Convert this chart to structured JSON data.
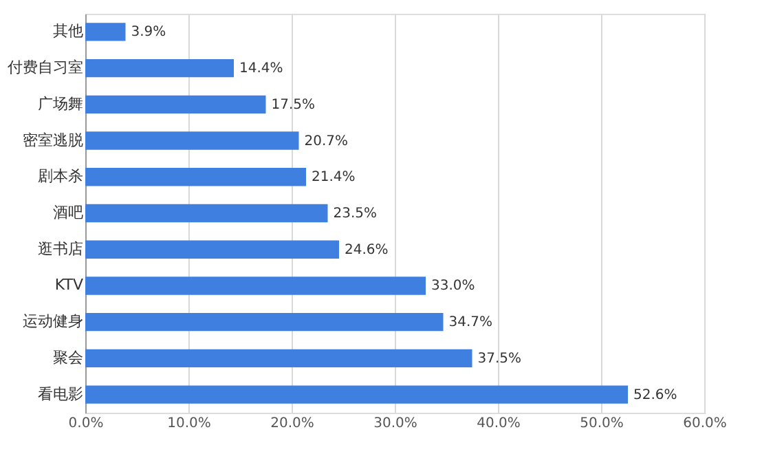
{
  "chart_data": {
    "type": "bar",
    "orientation": "horizontal",
    "categories": [
      "其他",
      "付费自习室",
      "广场舞",
      "密室逃脱",
      "剧本杀",
      "酒吧",
      "逛书店",
      "KTV",
      "运动健身",
      "聚会",
      "看电影"
    ],
    "values": [
      3.9,
      14.4,
      17.5,
      20.7,
      21.4,
      23.5,
      24.6,
      33.0,
      34.7,
      37.5,
      52.6
    ],
    "value_labels": [
      "3.9%",
      "14.4%",
      "17.5%",
      "20.7%",
      "21.4%",
      "23.5%",
      "24.6%",
      "33.0%",
      "34.7%",
      "37.5%",
      "52.6%"
    ],
    "color": "#3f7fe0",
    "xlim": [
      0,
      60
    ],
    "xticks": [
      {
        "value": 0,
        "label": "0.0%"
      },
      {
        "value": 10,
        "label": "10.0%"
      },
      {
        "value": 20,
        "label": "20.0%"
      },
      {
        "value": 30,
        "label": "30.0%"
      },
      {
        "value": 40,
        "label": "40.0%"
      },
      {
        "value": 50,
        "label": "50.0%"
      },
      {
        "value": 60,
        "label": "60.0%"
      }
    ],
    "grid": "x"
  }
}
